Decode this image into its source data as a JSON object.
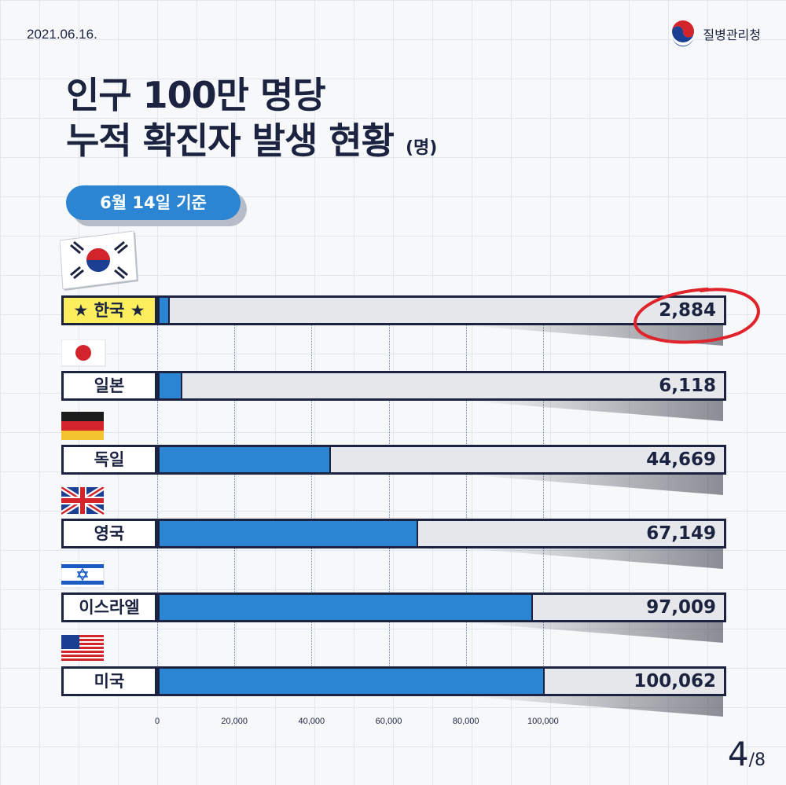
{
  "date": "2021.06.16.",
  "agency": "질병관리청",
  "title_line1": "인구 100만 명당",
  "title_line2": "누적 확진자 발생 현황",
  "title_unit": "(명)",
  "badge": "6월 14일 기준",
  "highlight_label": "★ 한국 ★",
  "page_current": "4",
  "page_total": "/8",
  "colors": {
    "bar": "#2b85d2",
    "track": "#e6e7ea",
    "navy": "#1b2340",
    "highlight": "#fcee5c",
    "circle": "#e0232b"
  },
  "chart_data": {
    "type": "bar",
    "orientation": "horizontal",
    "categories": [
      "한국",
      "일본",
      "독일",
      "영국",
      "이스라엘",
      "미국"
    ],
    "values": [
      2884,
      6118,
      44669,
      67149,
      97009,
      100062
    ],
    "value_labels": [
      "2,884",
      "6,118",
      "44,669",
      "67,149",
      "97,009",
      "100,062"
    ],
    "flags": [
      "korea-flag-icon",
      "japan-flag-icon",
      "germany-flag-icon",
      "uk-flag-icon",
      "israel-flag-icon",
      "usa-flag-icon"
    ],
    "xlim": [
      0,
      147500
    ],
    "xticks": [
      0,
      20000,
      40000,
      60000,
      80000,
      100000
    ],
    "xtick_labels": [
      "0",
      "20,000",
      "40,000",
      "60,000",
      "80,000",
      "100,000"
    ],
    "grid": true
  }
}
